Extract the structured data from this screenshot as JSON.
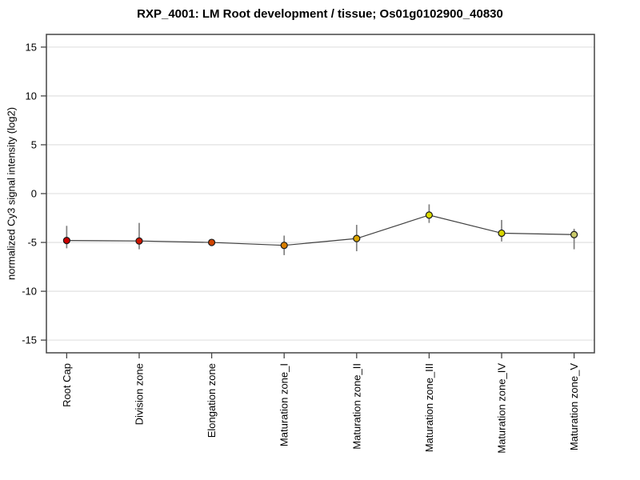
{
  "chart_data": {
    "type": "line",
    "title": "RXP_4001: LM Root development / tissue; Os01g0102900_40830",
    "xlabel": "",
    "ylabel": "normalized Cy3 signal intensity (log2)",
    "categories": [
      "Root Cap",
      "Division zone",
      "Elongation zone",
      "Maturation zone_I",
      "Maturation zone_II",
      "Maturation zone_III",
      "Maturation zone_IV",
      "Maturation zone_V"
    ],
    "values": [
      -4.8,
      -4.85,
      -5.0,
      -5.3,
      -4.6,
      -2.2,
      -4.05,
      -4.2
    ],
    "error_high": [
      -3.3,
      -3.0,
      -4.9,
      -4.3,
      -3.2,
      -1.1,
      -2.7,
      -3.6
    ],
    "error_low": [
      -5.6,
      -5.7,
      -5.1,
      -6.3,
      -5.9,
      -3.0,
      -4.9,
      -5.7
    ],
    "point_colors": [
      "#cc0000",
      "#cd1400",
      "#d04400",
      "#d97e00",
      "#d9a400",
      "#dcdc00",
      "#d8d400",
      "#c9c96a"
    ],
    "yticks": [
      -15,
      -10,
      -5,
      0,
      5,
      10,
      15
    ],
    "ylim": [
      -16.3,
      16.3
    ],
    "grid": "horizontal-only",
    "legend": "none",
    "styles": {
      "grid_color": "#e4e4e4",
      "frame_color": "#454545",
      "line_color": "#404040",
      "errorbar_color": "#818181",
      "marker_outline": "#1a1a1a",
      "text_color": "#000000",
      "background": "#ffffff"
    }
  }
}
